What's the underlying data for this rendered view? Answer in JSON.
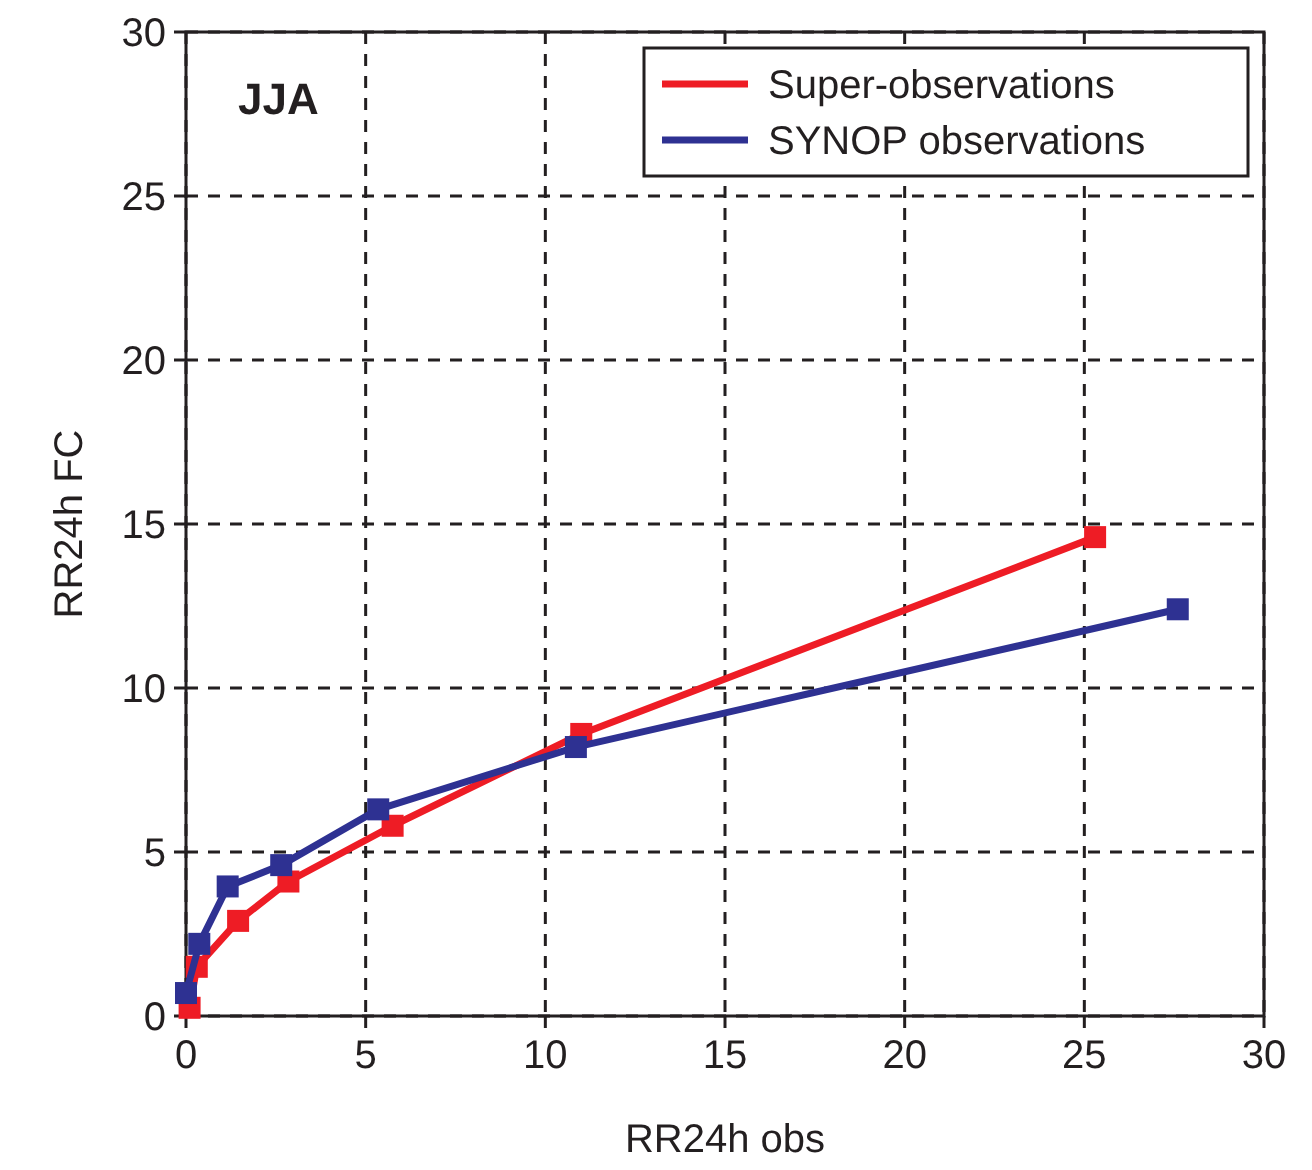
{
  "chart_data": {
    "type": "line",
    "xlabel": "RR24h obs",
    "ylabel": "RR24h FC",
    "annotations": [
      "JJA"
    ],
    "xlim": [
      0,
      30
    ],
    "xticks": [
      0,
      5,
      10,
      15,
      20,
      25,
      30
    ],
    "ylim": [
      0,
      30
    ],
    "yticks": [
      0,
      5,
      10,
      15,
      20,
      25,
      30
    ],
    "grid": true,
    "legend": "top right",
    "marker": "square",
    "line_style": "solid",
    "series": [
      {
        "name": "Super-observations",
        "color": "#ee1c25",
        "x": [
          0.1,
          0.3,
          1.45,
          2.85,
          5.75,
          11.0,
          25.3
        ],
        "values": [
          0.25,
          1.5,
          2.9,
          4.1,
          5.8,
          8.6,
          14.6
        ]
      },
      {
        "name": "SYNOP observations",
        "color": "#2e3192",
        "x": [
          0.0,
          0.37,
          1.16,
          2.65,
          5.35,
          10.85,
          27.6
        ],
        "values": [
          0.7,
          2.2,
          3.95,
          4.6,
          6.3,
          8.2,
          12.4
        ]
      }
    ]
  }
}
